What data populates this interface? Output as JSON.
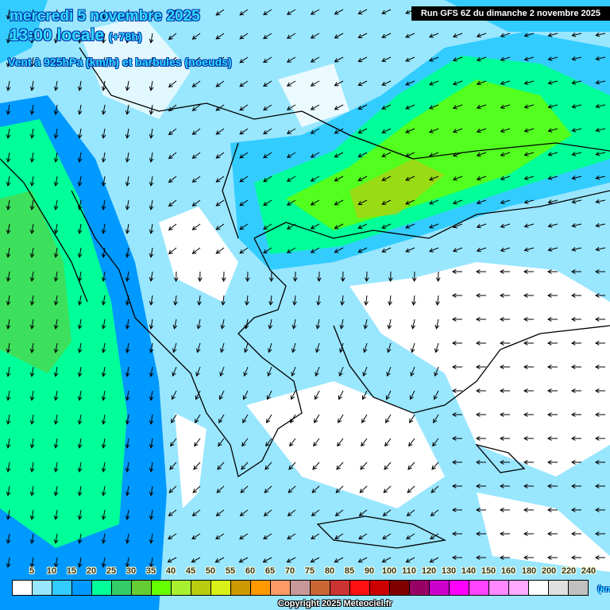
{
  "header": {
    "date": "mercredi 5 novembre 2025",
    "time": "13:00 locale",
    "lead": "(+78h)",
    "parameter": "Vent à 925hPa (km/h) et barbules (noeuds)",
    "run": "Run GFS 6Z du dimanche 2 novembre 2025"
  },
  "legend": {
    "labels": [
      "5",
      "10",
      "15",
      "20",
      "25",
      "30",
      "35",
      "40",
      "45",
      "50",
      "55",
      "60",
      "65",
      "70",
      "75",
      "80",
      "85",
      "90",
      "100",
      "110",
      "120",
      "130",
      "140",
      "150",
      "160",
      "180",
      "200",
      "220",
      "240"
    ],
    "colors": [
      "#ffffff",
      "#99e6ff",
      "#33ccff",
      "#0099ff",
      "#00ff99",
      "#33cc66",
      "#66cc33",
      "#66ff00",
      "#a8f030",
      "#b8cc10",
      "#d8f018",
      "#cc9900",
      "#ff9900",
      "#ff9966",
      "#c89898",
      "#cc6633",
      "#cc3333",
      "#ff1010",
      "#cc0000",
      "#800000",
      "#990066",
      "#cc00cc",
      "#ff00ff",
      "#ff44ff",
      "#ff88ff",
      "#ffaaff",
      "#ffffff",
      "#e0e0e0",
      "#c0c0c0"
    ],
    "unit": "(km/h)"
  },
  "copyright": "Copyright 2025 Meteociel.fr"
}
